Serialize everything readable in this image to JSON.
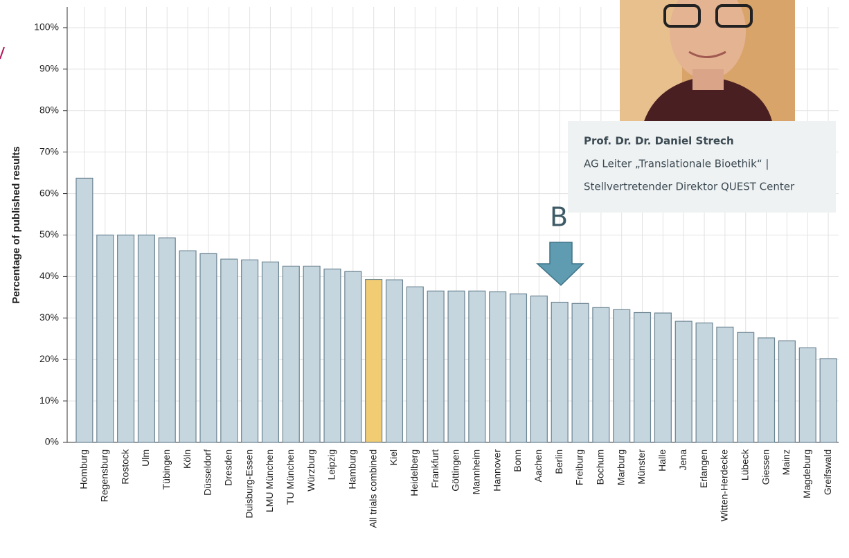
{
  "chart_data": {
    "type": "bar",
    "y_axis_label": "Percentage of published results",
    "categories": [
      "Homburg",
      "Regensburg",
      "Rostock",
      "Ulm",
      "Tübingen",
      "Köln",
      "Düsseldorf",
      "Dresden",
      "Duisburg-Essen",
      "LMU München",
      "TU München",
      "Würzburg",
      "Leipzig",
      "Hamburg",
      "All trials combined",
      "Kiel",
      "Heidelberg",
      "Frankfurt",
      "Göttingen",
      "Mannheim",
      "Hannover",
      "Bonn",
      "Aachen",
      "Berlin",
      "Freiburg",
      "Bochum",
      "Marburg",
      "Münster",
      "Halle",
      "Jena",
      "Erlangen",
      "Witten-Herdecke",
      "Lübeck",
      "Giessen",
      "Mainz",
      "Magdeburg",
      "Greifswald"
    ],
    "values": [
      63.7,
      50,
      50,
      50,
      49.3,
      46.2,
      45.5,
      44.2,
      44,
      43.5,
      42.5,
      42.5,
      41.8,
      41.2,
      39.3,
      39.2,
      37.5,
      36.5,
      36.5,
      36.5,
      36.3,
      35.8,
      35.3,
      33.8,
      33.5,
      32.5,
      32,
      31.3,
      31.2,
      29.2,
      28.8,
      27.8,
      26.5,
      25.2,
      24.5,
      22.8,
      20.2
    ],
    "colors": [
      "#c6d6df",
      "#c6d6df",
      "#c6d6df",
      "#c6d6df",
      "#c6d6df",
      "#c6d6df",
      "#c6d6df",
      "#c6d6df",
      "#c6d6df",
      "#c6d6df",
      "#c6d6df",
      "#c6d6df",
      "#c6d6df",
      "#c6d6df",
      "#f2cc72",
      "#c6d6df",
      "#c6d6df",
      "#c6d6df",
      "#c6d6df",
      "#c6d6df",
      "#c6d6df",
      "#c6d6df",
      "#c6d6df",
      "#c6d6df",
      "#c6d6df",
      "#c6d6df",
      "#c6d6df",
      "#c6d6df",
      "#c6d6df",
      "#c6d6df",
      "#c6d6df",
      "#c6d6df",
      "#c6d6df",
      "#c6d6df",
      "#c6d6df",
      "#c6d6df",
      "#c6d6df"
    ],
    "ylim": [
      0,
      105
    ],
    "yticks": [
      {
        "value": 0,
        "label": "0%"
      },
      {
        "value": 10,
        "label": "10%"
      },
      {
        "value": 20,
        "label": "20%"
      },
      {
        "value": 30,
        "label": "30%"
      },
      {
        "value": 40,
        "label": "40%"
      },
      {
        "value": 50,
        "label": "50%"
      },
      {
        "value": 60,
        "label": "60%"
      },
      {
        "value": 70,
        "label": "70%"
      },
      {
        "value": 80,
        "label": "80%"
      },
      {
        "value": 90,
        "label": "90%"
      },
      {
        "value": 100,
        "label": "100%"
      }
    ],
    "grid": true
  },
  "overlay": {
    "marker": "B",
    "caption": {
      "name": "Prof. Dr. Dr. Daniel Strech",
      "line1": "AG Leiter „Translationale Bioethik“ |",
      "line2": "Stellvertretender Direktor QUEST Center"
    }
  }
}
